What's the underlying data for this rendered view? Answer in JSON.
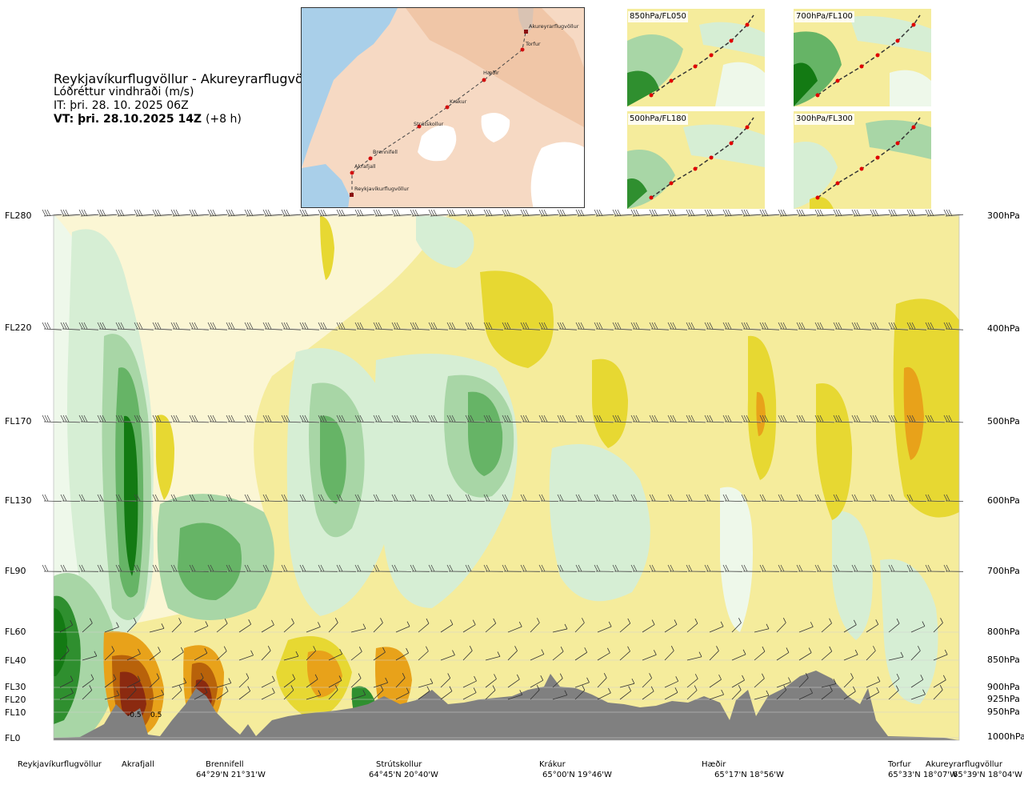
{
  "title": {
    "route": "Reykjavíkurflugvöllur - Akureyrarflugvöllur",
    "product": "Lóðréttur vindhraði (m/s)",
    "issue_time": "IT: þri. 28. 10. 2025 06Z",
    "valid_time": "VT: þri. 28.10.2025 14Z",
    "valid_offset": "(+8 h)"
  },
  "map": {
    "waypoints": [
      "Akureyrarflugvöllur",
      "Torfur",
      "Hæðir",
      "Krákur",
      "Strútskollur",
      "Brennifell",
      "Akrafjall",
      "Reykjavíkurflugvöllur"
    ]
  },
  "mini_panels": [
    "850hPa/FL050",
    "700hPa/FL100",
    "500hPa/FL180",
    "300hPa/FL300"
  ],
  "chart_data": {
    "type": "heatmap",
    "title": "Lóðréttur vindhraði (m/s)",
    "y_axis_left": [
      "FL280",
      "FL220",
      "FL170",
      "FL130",
      "FL90",
      "FL60",
      "FL40",
      "FL30",
      "FL20",
      "FL10",
      "FL0"
    ],
    "y_axis_right": [
      "300hPa",
      "400hPa",
      "500hPa",
      "600hPa",
      "700hPa",
      "800hPa",
      "850hPa",
      "900hPa",
      "925hPa",
      "950hPa",
      "1000hPa"
    ],
    "pressure_levels_hpa": [
      300,
      400,
      500,
      600,
      700,
      800,
      850,
      900,
      925,
      950,
      1000
    ],
    "x_locations": [
      {
        "name": "Reykjavíkurflugvöllur",
        "coord": ""
      },
      {
        "name": "Akrafjall",
        "coord": ""
      },
      {
        "name": "Brennifell",
        "coord": "64°29'N 21°31'W"
      },
      {
        "name": "Strútskollur",
        "coord": "64°45'N 20°40'W"
      },
      {
        "name": "Krákur",
        "coord": "65°00'N 19°46'W"
      },
      {
        "name": "Hæðir",
        "coord": "65°17'N 18°56'W"
      },
      {
        "name": "Torfur",
        "coord": "65°33'N 18°07'W"
      },
      {
        "name": "Akureyrarflugvöllur",
        "coord": "65°39'N 18°04'W"
      }
    ],
    "annotations": [
      "-0.5",
      "0.5"
    ],
    "color_scale": {
      "strong_down": "#8b2a10",
      "down_3": "#b8620a",
      "down_2": "#e8a21a",
      "down_1": "#e7d832",
      "down_0": "#f5ec9c",
      "neutral_neg": "#fbf6d4",
      "neutral_pos": "#eef8ea",
      "up_0": "#d6eed4",
      "up_1": "#a8d6a6",
      "up_2": "#66b466",
      "up_3": "#2f8f2f",
      "strong_up": "#137a13"
    },
    "terrain_color": "#808080"
  }
}
